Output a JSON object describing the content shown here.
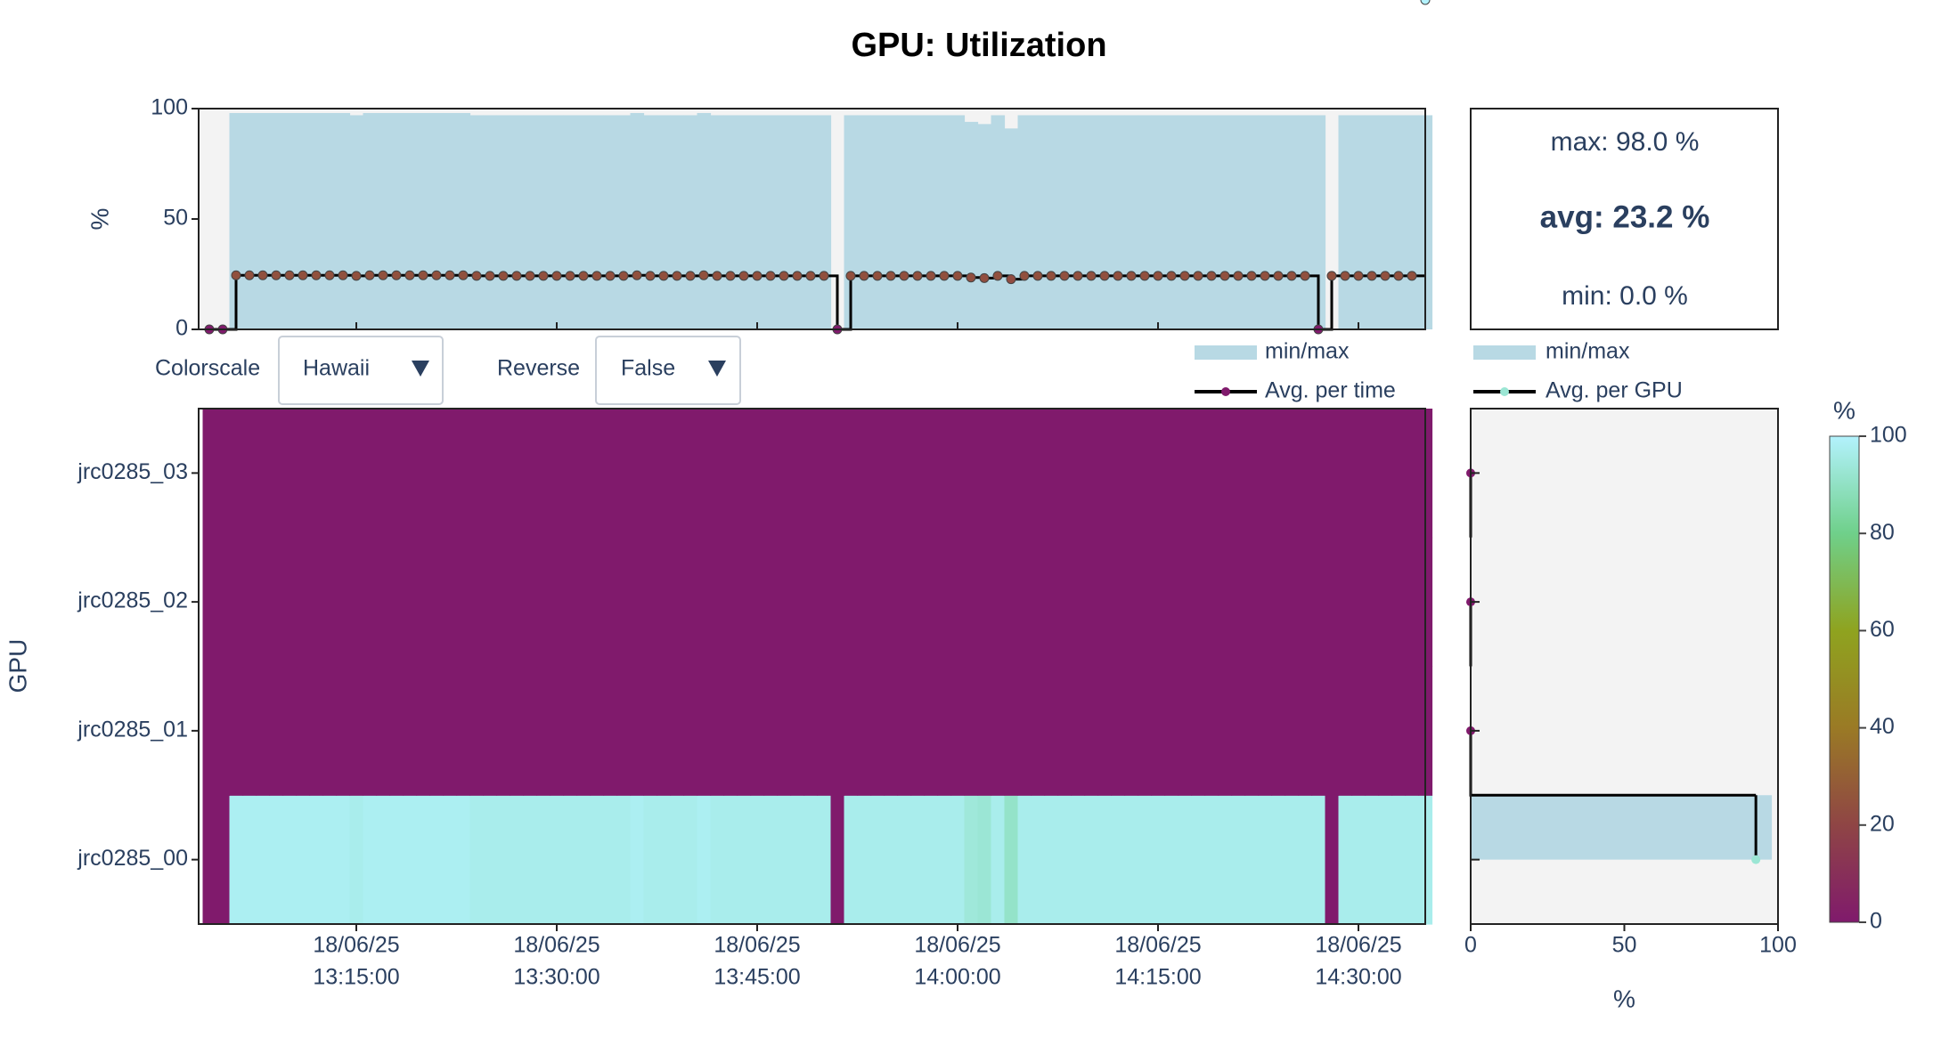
{
  "title": "GPU: Utilization",
  "stats": {
    "max": "max: 98.0 %",
    "avg": "avg: 23.2 %",
    "min": "min: 0.0 %"
  },
  "controls": [
    {
      "label": "Colorscale",
      "value": "Hawaii"
    },
    {
      "label": "Reverse",
      "value": "False"
    }
  ],
  "chart_data": [
    {
      "type": "range",
      "ylabel": "%",
      "ylim": [
        0,
        100
      ],
      "yticks": [
        0,
        50,
        100
      ],
      "series": [
        {
          "name": "min/max",
          "color": "#b8d9e4",
          "low": [
            0,
            0,
            0,
            0,
            0,
            0,
            0,
            0,
            0,
            0,
            0,
            0,
            0,
            0,
            0,
            0,
            0,
            0,
            0,
            0,
            0,
            0,
            0,
            0,
            0,
            0,
            0,
            0,
            0,
            0,
            0,
            0,
            0,
            0,
            0,
            0,
            0,
            0,
            0,
            0,
            0,
            0,
            0,
            0,
            0,
            0,
            0,
            0,
            0,
            0,
            0,
            0,
            0,
            0,
            0,
            0,
            0,
            0,
            0,
            0,
            0,
            0,
            0,
            0,
            0,
            0,
            0,
            0,
            0,
            0,
            0,
            0,
            0,
            0,
            0,
            0,
            0,
            0,
            0,
            0,
            0,
            0,
            0,
            0,
            0,
            0,
            0,
            0,
            0,
            0,
            0,
            0
          ],
          "values": [
            0,
            0,
            98,
            98,
            98,
            98,
            98,
            98,
            98,
            98,
            98,
            97,
            98,
            98,
            98,
            98,
            98,
            98,
            98,
            98,
            97,
            97,
            97,
            97,
            97,
            97,
            97,
            97,
            97,
            97,
            97,
            97,
            98,
            97,
            97,
            97,
            97,
            98,
            97,
            97,
            97,
            97,
            97,
            97,
            97,
            97,
            97,
            0,
            97,
            97,
            97,
            97,
            97,
            97,
            97,
            97,
            97,
            94,
            93,
            97,
            91,
            97,
            97,
            97,
            97,
            97,
            97,
            97,
            97,
            97,
            97,
            97,
            97,
            97,
            97,
            97,
            97,
            97,
            97,
            97,
            97,
            97,
            97,
            97,
            0,
            97,
            97,
            97,
            97,
            97,
            97,
            97
          ]
        },
        {
          "name": "Avg. per time",
          "color": "#000000",
          "values": [
            0,
            0,
            24.5,
            24.5,
            24.5,
            24.5,
            24.5,
            24.5,
            24.5,
            24.5,
            24.5,
            24.25,
            24.5,
            24.5,
            24.5,
            24.5,
            24.5,
            24.5,
            24.5,
            24.5,
            24.25,
            24.25,
            24.25,
            24.25,
            24.25,
            24.25,
            24.25,
            24.25,
            24.25,
            24.25,
            24.25,
            24.25,
            24.5,
            24.25,
            24.25,
            24.25,
            24.25,
            24.5,
            24.25,
            24.25,
            24.25,
            24.25,
            24.25,
            24.25,
            24.25,
            24.25,
            24.25,
            0,
            24.25,
            24.25,
            24.25,
            24.25,
            24.25,
            24.25,
            24.25,
            24.25,
            24.25,
            23.5,
            23.25,
            24.25,
            22.75,
            24.25,
            24.25,
            24.25,
            24.25,
            24.25,
            24.25,
            24.25,
            24.25,
            24.25,
            24.25,
            24.25,
            24.25,
            24.25,
            24.25,
            24.25,
            24.25,
            24.25,
            24.25,
            24.25,
            24.25,
            24.25,
            24.25,
            0,
            24.25,
            24.25,
            24.25,
            24.25,
            24.25,
            24.25,
            24.25
          ]
        }
      ]
    },
    {
      "type": "heatmap",
      "ylabel": "GPU",
      "categories": [
        "jrc0285_00",
        "jrc0285_01",
        "jrc0285_02",
        "jrc0285_03"
      ],
      "xlim": [
        "2025-06-18T13:03:12",
        "2025-06-18T14:35:00"
      ],
      "xticks": [
        {
          "value": "2025-06-18T13:15:00",
          "label": [
            "18/06/25",
            "13:15:00"
          ]
        },
        {
          "value": "2025-06-18T13:30:00",
          "label": [
            "18/06/25",
            "13:30:00"
          ]
        },
        {
          "value": "2025-06-18T13:45:00",
          "label": [
            "18/06/25",
            "13:45:00"
          ]
        },
        {
          "value": "2025-06-18T14:00:00",
          "label": [
            "18/06/25",
            "14:00:00"
          ]
        },
        {
          "value": "2025-06-18T14:15:00",
          "label": [
            "18/06/25",
            "14:15:00"
          ]
        },
        {
          "value": "2025-06-18T14:30:00",
          "label": [
            "18/06/25",
            "14:30:00"
          ]
        }
      ],
      "x": [
        "2025-06-18T13:04:00",
        "2025-06-18T13:05:00",
        "2025-06-18T13:06:00",
        "2025-06-18T13:07:00",
        "2025-06-18T13:08:00",
        "2025-06-18T13:09:00",
        "2025-06-18T13:10:00",
        "2025-06-18T13:11:00",
        "2025-06-18T13:12:00",
        "2025-06-18T13:13:00",
        "2025-06-18T13:14:00",
        "2025-06-18T13:15:00",
        "2025-06-18T13:16:00",
        "2025-06-18T13:17:00",
        "2025-06-18T13:18:00",
        "2025-06-18T13:19:00",
        "2025-06-18T13:20:00",
        "2025-06-18T13:21:00",
        "2025-06-18T13:22:00",
        "2025-06-18T13:23:00",
        "2025-06-18T13:24:00",
        "2025-06-18T13:25:00",
        "2025-06-18T13:26:00",
        "2025-06-18T13:27:00",
        "2025-06-18T13:28:00",
        "2025-06-18T13:29:00",
        "2025-06-18T13:30:00",
        "2025-06-18T13:31:00",
        "2025-06-18T13:32:00",
        "2025-06-18T13:33:00",
        "2025-06-18T13:34:00",
        "2025-06-18T13:35:00",
        "2025-06-18T13:36:00",
        "2025-06-18T13:37:00",
        "2025-06-18T13:38:00",
        "2025-06-18T13:39:00",
        "2025-06-18T13:40:00",
        "2025-06-18T13:41:00",
        "2025-06-18T13:42:00",
        "2025-06-18T13:43:00",
        "2025-06-18T13:44:00",
        "2025-06-18T13:45:00",
        "2025-06-18T13:46:00",
        "2025-06-18T13:47:00",
        "2025-06-18T13:48:00",
        "2025-06-18T13:49:00",
        "2025-06-18T13:50:00",
        "2025-06-18T13:51:00",
        "2025-06-18T13:52:00",
        "2025-06-18T13:53:00",
        "2025-06-18T13:54:00",
        "2025-06-18T13:55:00",
        "2025-06-18T13:56:00",
        "2025-06-18T13:57:00",
        "2025-06-18T13:58:00",
        "2025-06-18T13:59:00",
        "2025-06-18T14:00:00",
        "2025-06-18T14:01:00",
        "2025-06-18T14:02:00",
        "2025-06-18T14:03:00",
        "2025-06-18T14:04:00",
        "2025-06-18T14:05:00",
        "2025-06-18T14:06:00",
        "2025-06-18T14:07:00",
        "2025-06-18T14:08:00",
        "2025-06-18T14:09:00",
        "2025-06-18T14:10:00",
        "2025-06-18T14:11:00",
        "2025-06-18T14:12:00",
        "2025-06-18T14:13:00",
        "2025-06-18T14:14:00",
        "2025-06-18T14:15:00",
        "2025-06-18T14:16:00",
        "2025-06-18T14:17:00",
        "2025-06-18T14:18:00",
        "2025-06-18T14:19:00",
        "2025-06-18T14:20:00",
        "2025-06-18T14:21:00",
        "2025-06-18T14:22:00",
        "2025-06-18T14:23:00",
        "2025-06-18T14:24:00",
        "2025-06-18T14:25:00",
        "2025-06-18T14:26:00",
        "2025-06-18T14:27:00",
        "2025-06-18T14:28:00",
        "2025-06-18T14:29:00",
        "2025-06-18T14:30:00",
        "2025-06-18T14:31:00",
        "2025-06-18T14:32:00",
        "2025-06-18T14:33:00",
        "2025-06-18T14:34:00",
        "2025-06-18T14:35:00"
      ],
      "z": [
        [
          0,
          0,
          98,
          98,
          98,
          98,
          98,
          98,
          98,
          98,
          98,
          97,
          98,
          98,
          98,
          98,
          98,
          98,
          98,
          98,
          97,
          97,
          97,
          97,
          97,
          97,
          97,
          97,
          97,
          97,
          97,
          97,
          98,
          97,
          97,
          97,
          97,
          98,
          97,
          97,
          97,
          97,
          97,
          97,
          97,
          97,
          97,
          0,
          97,
          97,
          97,
          97,
          97,
          97,
          97,
          97,
          97,
          94,
          93,
          97,
          91,
          97,
          97,
          97,
          97,
          97,
          97,
          97,
          97,
          97,
          97,
          97,
          97,
          97,
          97,
          97,
          97,
          97,
          97,
          97,
          97,
          97,
          97,
          97,
          0,
          97,
          97,
          97,
          97,
          97,
          97,
          97
        ],
        [
          0,
          0,
          0,
          0,
          0,
          0,
          0,
          0,
          0,
          0,
          0,
          0,
          0,
          0,
          0,
          0,
          0,
          0,
          0,
          0,
          0,
          0,
          0,
          0,
          0,
          0,
          0,
          0,
          0,
          0,
          0,
          0,
          0,
          0,
          0,
          0,
          0,
          0,
          0,
          0,
          0,
          0,
          0,
          0,
          0,
          0,
          0,
          0,
          0,
          0,
          0,
          0,
          0,
          0,
          0,
          0,
          0,
          0,
          0,
          0,
          0,
          0,
          0,
          0,
          0,
          0,
          0,
          0,
          0,
          0,
          0,
          0,
          0,
          0,
          0,
          0,
          0,
          0,
          0,
          0,
          0,
          0,
          0,
          0,
          0,
          0,
          0,
          0,
          0,
          0,
          0,
          0
        ],
        [
          0,
          0,
          0,
          0,
          0,
          0,
          0,
          0,
          0,
          0,
          0,
          0,
          0,
          0,
          0,
          0,
          0,
          0,
          0,
          0,
          0,
          0,
          0,
          0,
          0,
          0,
          0,
          0,
          0,
          0,
          0,
          0,
          0,
          0,
          0,
          0,
          0,
          0,
          0,
          0,
          0,
          0,
          0,
          0,
          0,
          0,
          0,
          0,
          0,
          0,
          0,
          0,
          0,
          0,
          0,
          0,
          0,
          0,
          0,
          0,
          0,
          0,
          0,
          0,
          0,
          0,
          0,
          0,
          0,
          0,
          0,
          0,
          0,
          0,
          0,
          0,
          0,
          0,
          0,
          0,
          0,
          0,
          0,
          0,
          0,
          0,
          0,
          0,
          0,
          0,
          0,
          0
        ],
        [
          0,
          0,
          0,
          0,
          0,
          0,
          0,
          0,
          0,
          0,
          0,
          0,
          0,
          0,
          0,
          0,
          0,
          0,
          0,
          0,
          0,
          0,
          0,
          0,
          0,
          0,
          0,
          0,
          0,
          0,
          0,
          0,
          0,
          0,
          0,
          0,
          0,
          0,
          0,
          0,
          0,
          0,
          0,
          0,
          0,
          0,
          0,
          0,
          0,
          0,
          0,
          0,
          0,
          0,
          0,
          0,
          0,
          0,
          0,
          0,
          0,
          0,
          0,
          0,
          0,
          0,
          0,
          0,
          0,
          0,
          0,
          0,
          0,
          0,
          0,
          0,
          0,
          0,
          0,
          0,
          0,
          0,
          0,
          0,
          0,
          0,
          0,
          0,
          0,
          0,
          0,
          0
        ]
      ],
      "zlim": [
        0,
        100
      ],
      "zticks": [
        0,
        20,
        40,
        60,
        80,
        100
      ],
      "colorbar_title": "%",
      "colorscale": [
        [
          0,
          "#801a6c"
        ],
        [
          0.2,
          "#8f4545"
        ],
        [
          0.4,
          "#9a7a25"
        ],
        [
          0.6,
          "#8fa31f"
        ],
        [
          0.8,
          "#6fd08a"
        ],
        [
          1,
          "#b3f2fd"
        ]
      ]
    },
    {
      "type": "hbar",
      "xlabel": "%",
      "xlim": [
        0,
        100
      ],
      "xticks": [
        0,
        50,
        100
      ],
      "series": [
        {
          "name": "min/max",
          "color": "#b8d9e4",
          "low": [
            0,
            0,
            0,
            0
          ],
          "values": [
            98,
            0,
            0,
            0
          ]
        },
        {
          "name": "Avg. per GPU",
          "color": "#000000",
          "values": [
            92.8,
            0,
            0,
            0
          ]
        }
      ]
    }
  ]
}
